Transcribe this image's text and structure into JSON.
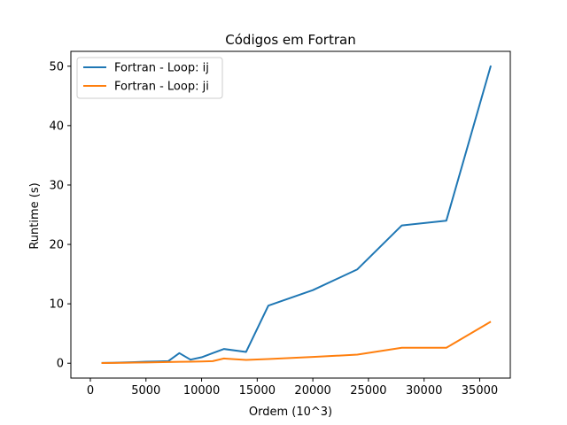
{
  "chart_data": {
    "type": "line",
    "title": "Códigos em Fortran",
    "xlabel": "Ordem (10^3)",
    "ylabel": "Runtime (s)",
    "xlim": [
      -1750,
      37750
    ],
    "ylim": [
      -2.5,
      52.5
    ],
    "xticks": [
      0,
      5000,
      10000,
      15000,
      20000,
      25000,
      30000,
      35000
    ],
    "yticks": [
      0,
      10,
      20,
      30,
      40,
      50
    ],
    "grid": false,
    "legend_position": "top-left",
    "series": [
      {
        "name": "Fortran - Loop: ij",
        "color": "#1f77b4",
        "x": [
          1000,
          2000,
          3000,
          4000,
          5000,
          6000,
          7000,
          8000,
          9000,
          10000,
          11000,
          12000,
          14000,
          16000,
          20000,
          24000,
          28000,
          32000,
          36000
        ],
        "y": [
          0.05,
          0.08,
          0.12,
          0.18,
          0.25,
          0.3,
          0.35,
          1.7,
          0.6,
          1.0,
          1.7,
          2.4,
          1.9,
          9.7,
          12.3,
          15.8,
          23.2,
          24.0,
          50.1
        ]
      },
      {
        "name": "Fortran - Loop: ji",
        "color": "#ff7f0e",
        "x": [
          1000,
          2000,
          3000,
          4000,
          5000,
          6000,
          7000,
          8000,
          9000,
          10000,
          11000,
          12000,
          14000,
          16000,
          20000,
          24000,
          28000,
          32000,
          36000
        ],
        "y": [
          0.03,
          0.05,
          0.07,
          0.1,
          0.13,
          0.16,
          0.2,
          0.23,
          0.25,
          0.3,
          0.35,
          0.8,
          0.55,
          0.7,
          1.05,
          1.45,
          2.6,
          2.6,
          7.0
        ]
      }
    ]
  }
}
